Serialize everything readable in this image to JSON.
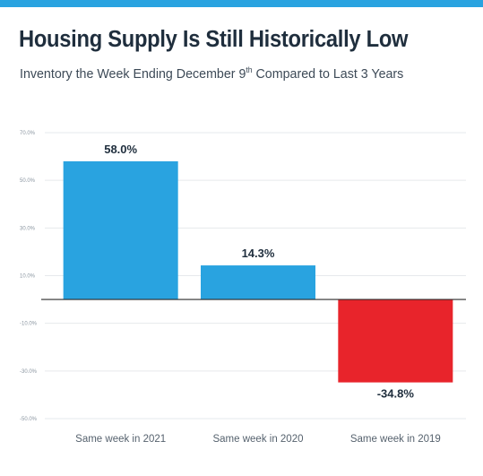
{
  "header": {
    "title": "Housing Supply Is Still Historically Low",
    "subtitle_prefix": "Inventory the Week Ending December 9",
    "subtitle_sup": "th",
    "subtitle_suffix": " Compared to Last 3 Years"
  },
  "colors": {
    "accent": "#29a3e0",
    "positive_bar": "#29a3e0",
    "negative_bar": "#e8242b"
  },
  "chart_data": {
    "type": "bar",
    "categories": [
      "Same week in 2021",
      "Same week in 2020",
      "Same week in 2019"
    ],
    "values": [
      58.0,
      14.3,
      -34.8
    ],
    "value_labels": [
      "58.0%",
      "14.3%",
      "-34.8%"
    ],
    "ylim": [
      -50,
      70
    ],
    "yticks": [
      70,
      50,
      30,
      10,
      -10,
      -30,
      -50
    ],
    "ytick_labels": [
      "70.0%",
      "50.0%",
      "30.0%",
      "10.0%",
      "-10.0%",
      "-30.0%",
      "-50.0%"
    ],
    "grid": true,
    "legend": "none"
  }
}
